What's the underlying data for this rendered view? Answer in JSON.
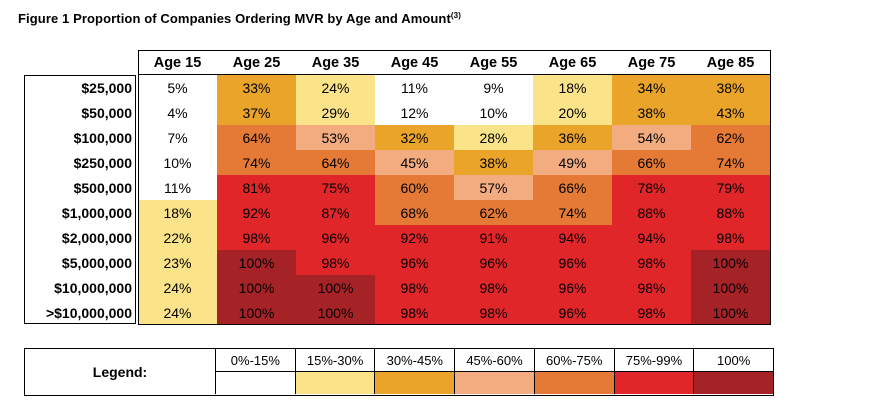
{
  "title": "Figure 1 Proportion of Companies Ordering MVR by Age and Amount",
  "title_sup": "(3)",
  "ages": [
    "Age 15",
    "Age 25",
    "Age 35",
    "Age 45",
    "Age 55",
    "Age 65",
    "Age 75",
    "Age 85"
  ],
  "colors": {
    "c0": "#ffffff",
    "c1": "#fae389",
    "c2": "#eaa42a",
    "c3": "#f3ab80",
    "c4": "#e47a35",
    "c5": "#e02628",
    "c6": "#a52226"
  },
  "rows": [
    {
      "label": "$25,000",
      "values": [
        "5%",
        "33%",
        "24%",
        "11%",
        "9%",
        "18%",
        "34%",
        "38%"
      ],
      "cls": [
        "c0",
        "c2",
        "c1",
        "c0",
        "c0",
        "c1",
        "c2",
        "c2"
      ]
    },
    {
      "label": "$50,000",
      "values": [
        "4%",
        "37%",
        "29%",
        "12%",
        "10%",
        "20%",
        "38%",
        "43%"
      ],
      "cls": [
        "c0",
        "c2",
        "c1",
        "c0",
        "c0",
        "c1",
        "c2",
        "c2"
      ]
    },
    {
      "label": "$100,000",
      "values": [
        "7%",
        "64%",
        "53%",
        "32%",
        "28%",
        "36%",
        "54%",
        "62%"
      ],
      "cls": [
        "c0",
        "c4",
        "c3",
        "c2",
        "c1",
        "c2",
        "c3",
        "c4"
      ]
    },
    {
      "label": "$250,000",
      "values": [
        "10%",
        "74%",
        "64%",
        "45%",
        "38%",
        "49%",
        "66%",
        "74%"
      ],
      "cls": [
        "c0",
        "c4",
        "c4",
        "c3",
        "c2",
        "c3",
        "c4",
        "c4"
      ]
    },
    {
      "label": "$500,000",
      "values": [
        "11%",
        "81%",
        "75%",
        "60%",
        "57%",
        "66%",
        "78%",
        "79%"
      ],
      "cls": [
        "c0",
        "c5",
        "c5",
        "c4",
        "c3",
        "c4",
        "c5",
        "c5"
      ]
    },
    {
      "label": "$1,000,000",
      "values": [
        "18%",
        "92%",
        "87%",
        "68%",
        "62%",
        "74%",
        "88%",
        "88%"
      ],
      "cls": [
        "c1",
        "c5",
        "c5",
        "c4",
        "c4",
        "c4",
        "c5",
        "c5"
      ]
    },
    {
      "label": "$2,000,000",
      "values": [
        "22%",
        "98%",
        "96%",
        "92%",
        "91%",
        "94%",
        "94%",
        "98%"
      ],
      "cls": [
        "c1",
        "c5",
        "c5",
        "c5",
        "c5",
        "c5",
        "c5",
        "c5"
      ]
    },
    {
      "label": "$5,000,000",
      "values": [
        "23%",
        "100%",
        "98%",
        "96%",
        "96%",
        "96%",
        "98%",
        "100%"
      ],
      "cls": [
        "c1",
        "c6",
        "c5",
        "c5",
        "c5",
        "c5",
        "c5",
        "c6"
      ]
    },
    {
      "label": "$10,000,000",
      "values": [
        "24%",
        "100%",
        "100%",
        "98%",
        "98%",
        "96%",
        "98%",
        "100%"
      ],
      "cls": [
        "c1",
        "c6",
        "c6",
        "c5",
        "c5",
        "c5",
        "c5",
        "c6"
      ]
    },
    {
      "label": ">$10,000,000",
      "values": [
        "24%",
        "100%",
        "100%",
        "98%",
        "98%",
        "96%",
        "98%",
        "100%"
      ],
      "cls": [
        "c1",
        "c6",
        "c6",
        "c5",
        "c5",
        "c5",
        "c5",
        "c6"
      ]
    }
  ],
  "legend": {
    "label": "Legend:",
    "items": [
      {
        "text": "0%-15%",
        "cls": "c0"
      },
      {
        "text": "15%-30%",
        "cls": "c1"
      },
      {
        "text": "30%-45%",
        "cls": "c2"
      },
      {
        "text": "45%-60%",
        "cls": "c3"
      },
      {
        "text": "60%-75%",
        "cls": "c4"
      },
      {
        "text": "75%-99%",
        "cls": "c5"
      },
      {
        "text": "100%",
        "cls": "c6"
      }
    ]
  }
}
